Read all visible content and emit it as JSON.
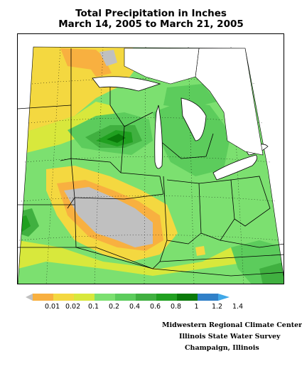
{
  "title": {
    "line1": "Total Precipitation in Inches",
    "line2": "March 14, 2005 to March 21, 2005"
  },
  "legend": {
    "ticks": [
      "0.01",
      "0.02",
      "0.1",
      "0.2",
      "0.4",
      "0.6",
      "0.8",
      "1",
      "1.2",
      "1.4"
    ],
    "colors": [
      "#c0c0c0",
      "#f8b040",
      "#f4d840",
      "#d8e83c",
      "#7ce070",
      "#5ccc5c",
      "#40b040",
      "#20a020",
      "#0a7a0a",
      "#3080c8",
      "#40a8e8"
    ]
  },
  "credits": {
    "line1": "Midwestern Regional Climate Center",
    "line2": "Illinois State Water Survey",
    "line3": "Champaign, Illinois"
  }
}
